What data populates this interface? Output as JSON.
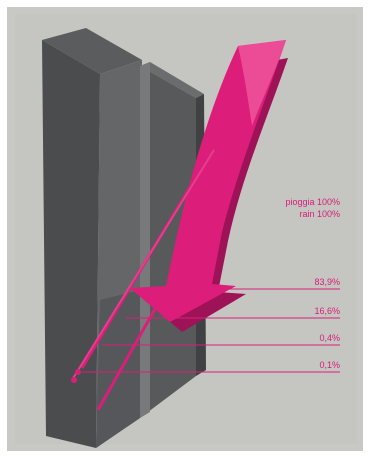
{
  "legend": {
    "line1": "pioggia 100%",
    "line2": "rain 100%"
  },
  "levels": [
    {
      "label": "83,9%",
      "value": 83.9
    },
    {
      "label": "16,6%",
      "value": 16.6
    },
    {
      "label": "0,4%",
      "value": 0.4
    },
    {
      "label": "0,1%",
      "value": 0.1
    }
  ],
  "colors": {
    "frame": "#c7c7c3",
    "panel_front": "#4b4d4f",
    "panel_side": "#6a6c6e",
    "panel_rear": "#5c5e60",
    "arrow": "#dc1e7a",
    "arrow_shadow": "#a4125a",
    "text": "#d81d78"
  }
}
